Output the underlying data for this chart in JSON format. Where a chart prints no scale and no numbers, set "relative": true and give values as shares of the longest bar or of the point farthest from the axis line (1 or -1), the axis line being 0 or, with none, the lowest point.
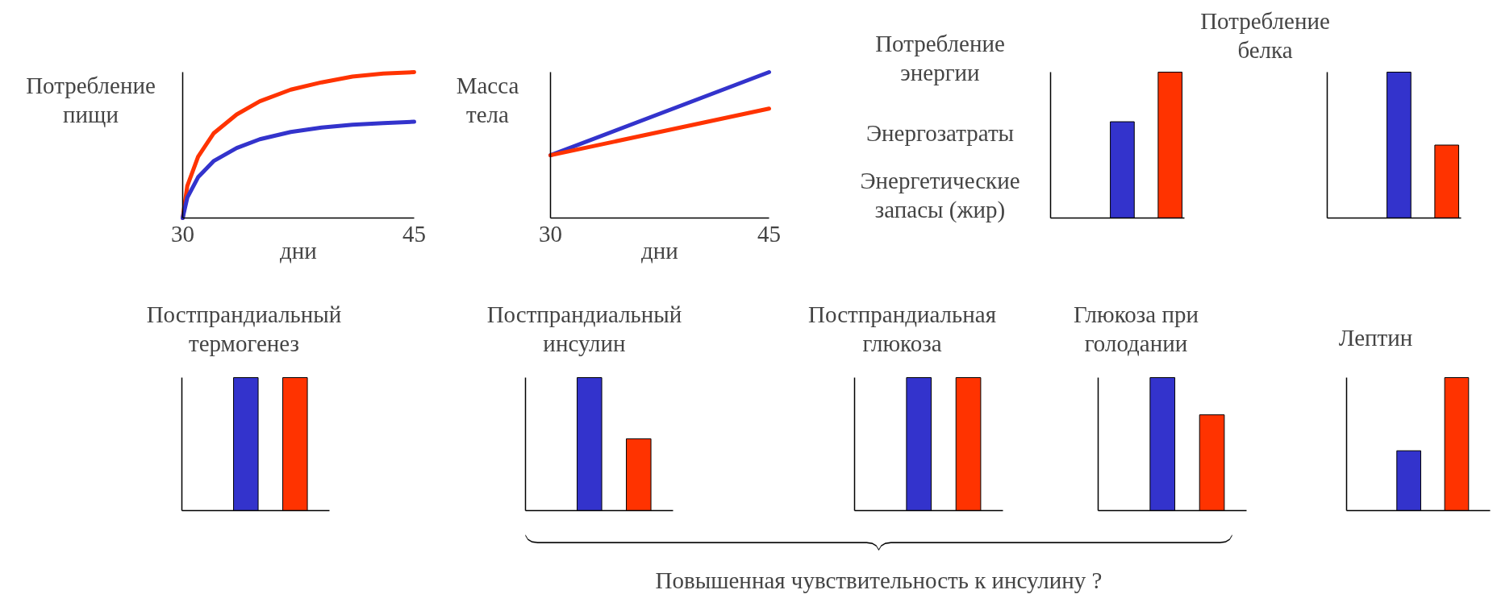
{
  "chart_data": [
    {
      "type": "line",
      "ylabel": "Потребление\nпищи",
      "xlabel": "дни",
      "relative": true,
      "xlim": [
        30,
        45
      ],
      "xticks": [
        30,
        45
      ],
      "series": [
        {
          "color": "#ff3300",
          "x": [
            30,
            30.3,
            31,
            32,
            33.5,
            35,
            37,
            39,
            41,
            43,
            45
          ],
          "values": [
            0,
            0.22,
            0.42,
            0.58,
            0.71,
            0.8,
            0.88,
            0.93,
            0.97,
            0.99,
            1.0
          ]
        },
        {
          "color": "#3333cc",
          "x": [
            30,
            30.3,
            31,
            32,
            33.5,
            35,
            37,
            39,
            41,
            43,
            45
          ],
          "values": [
            0,
            0.14,
            0.28,
            0.39,
            0.48,
            0.54,
            0.59,
            0.62,
            0.64,
            0.65,
            0.66
          ]
        }
      ]
    },
    {
      "type": "line",
      "ylabel": "Масса\nтела",
      "xlabel": "дни",
      "relative": true,
      "xlim": [
        30,
        45
      ],
      "xticks": [
        30,
        45
      ],
      "series": [
        {
          "color": "#3333cc",
          "x": [
            30,
            45
          ],
          "values": [
            0.43,
            1.0
          ]
        },
        {
          "color": "#ff3300",
          "x": [
            30,
            45
          ],
          "values": [
            0.43,
            0.75
          ]
        }
      ]
    },
    {
      "type": "bar",
      "relative": true,
      "categories": [
        null,
        null
      ],
      "values": [
        0.66,
        1.0
      ],
      "colors": [
        "#3333cc",
        "#ff3300"
      ],
      "annotations": [
        "Потребление\nэнергии",
        "Энергозатраты",
        "Энергетические\nзапасы (жир)"
      ]
    },
    {
      "type": "bar",
      "title": "Потребление\nбелка",
      "relative": true,
      "categories": [
        null,
        null
      ],
      "values": [
        1.0,
        0.5
      ],
      "colors": [
        "#3333cc",
        "#ff3300"
      ]
    },
    {
      "type": "bar",
      "title": "Постпрандиальный\nтермогенез",
      "relative": true,
      "categories": [
        null,
        null
      ],
      "values": [
        1.0,
        1.0
      ],
      "colors": [
        "#3333cc",
        "#ff3300"
      ]
    },
    {
      "type": "bar",
      "title": "Постпрандиальный\nинсулин",
      "relative": true,
      "categories": [
        null,
        null
      ],
      "values": [
        1.0,
        0.54
      ],
      "colors": [
        "#3333cc",
        "#ff3300"
      ]
    },
    {
      "type": "bar",
      "title": "Постпрандиальная\nглюкоза",
      "relative": true,
      "categories": [
        null,
        null
      ],
      "values": [
        1.0,
        1.0
      ],
      "colors": [
        "#3333cc",
        "#ff3300"
      ]
    },
    {
      "type": "bar",
      "title": "Глюкоза при\nголодании",
      "relative": true,
      "categories": [
        null,
        null
      ],
      "values": [
        1.0,
        0.72
      ],
      "colors": [
        "#3333cc",
        "#ff3300"
      ]
    },
    {
      "type": "bar",
      "title": "Лептин",
      "relative": true,
      "categories": [
        null,
        null
      ],
      "values": [
        0.45,
        1.0
      ],
      "colors": [
        "#3333cc",
        "#ff3300"
      ]
    },
    {
      "type": "other",
      "annotations": [
        "Повышенная чувствительность к инсулину ?"
      ]
    }
  ]
}
